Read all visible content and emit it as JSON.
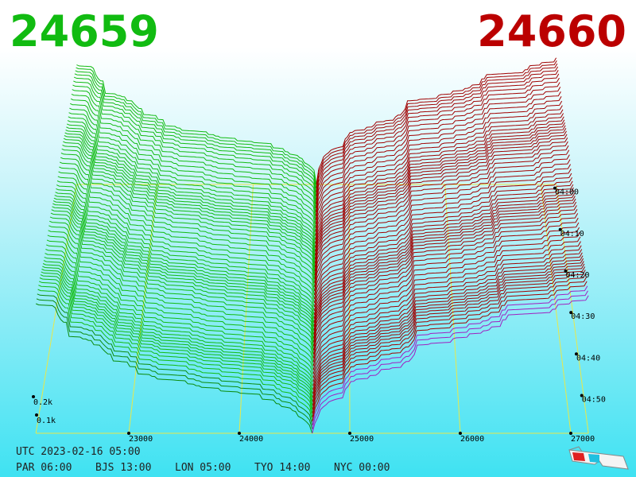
{
  "header": {
    "bid": 24659,
    "ask": 24660
  },
  "price_axis": [
    23000,
    24000,
    25000,
    26000,
    27000
  ],
  "depth_axis": [
    "0.2k",
    "0.1k"
  ],
  "time_axis": [
    "04:00",
    "04:10",
    "04:20",
    "04:30",
    "04:40",
    "04:50"
  ],
  "footer": {
    "utc": "UTC 2023-02-16 05:00",
    "zones": [
      "PAR 06:00",
      "BJS 13:00",
      "LON 05:00",
      "TYO 14:00",
      "NYC 00:00"
    ]
  }
}
